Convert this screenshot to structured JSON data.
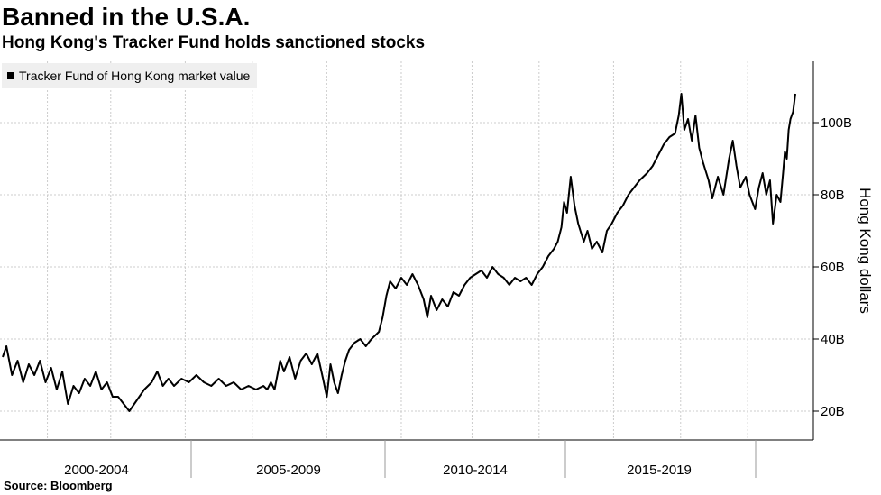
{
  "header": {
    "title": "Banned in the U.S.A.",
    "subtitle": "Hong Kong's Tracker Fund holds sanctioned stocks"
  },
  "footer": {
    "source": "Source: Bloomberg"
  },
  "colors": {
    "line": "#000000",
    "grid": "#cccccc",
    "legend_bg": "#efefef"
  },
  "chart_data": {
    "type": "line",
    "title": "Banned in the U.S.A.",
    "subtitle": "Hong Kong's Tracker Fund holds sanctioned stocks",
    "ylabel": "Hong Kong dollars",
    "xlabel": "",
    "legend": "Tracker Fund of Hong Kong market value",
    "legend_position": "top-left",
    "y_axis_side": "right",
    "ylim": [
      12,
      117
    ],
    "xlim": [
      1999.9,
      2021.0
    ],
    "grid": true,
    "y_ticks": [
      {
        "value": 20,
        "label": "20B"
      },
      {
        "value": 40,
        "label": "40B"
      },
      {
        "value": 60,
        "label": "60B"
      },
      {
        "value": 80,
        "label": "80B"
      },
      {
        "value": 100,
        "label": "100B"
      }
    ],
    "x_period_labels": [
      {
        "label": "2000-2004",
        "start": 1999.9,
        "end": 2005.0
      },
      {
        "label": "2005-2009",
        "start": 2005.0,
        "end": 2010.0
      },
      {
        "label": "2010-2014",
        "start": 2010.0,
        "end": 2014.75
      },
      {
        "label": "2015-2019",
        "start": 2014.75,
        "end": 2019.8
      }
    ],
    "series": [
      {
        "name": "Tracker Fund of Hong Kong market value",
        "unit": "HKD billions",
        "points": [
          [
            1999.9,
            35
          ],
          [
            2000.0,
            38
          ],
          [
            2000.15,
            30
          ],
          [
            2000.3,
            34
          ],
          [
            2000.45,
            28
          ],
          [
            2000.6,
            33
          ],
          [
            2000.75,
            30
          ],
          [
            2000.9,
            34
          ],
          [
            2001.05,
            28
          ],
          [
            2001.2,
            32
          ],
          [
            2001.35,
            26
          ],
          [
            2001.5,
            31
          ],
          [
            2001.65,
            22
          ],
          [
            2001.8,
            27
          ],
          [
            2001.95,
            25
          ],
          [
            2002.1,
            29
          ],
          [
            2002.25,
            27
          ],
          [
            2002.4,
            31
          ],
          [
            2002.55,
            26
          ],
          [
            2002.7,
            28
          ],
          [
            2002.85,
            24
          ],
          [
            2003.0,
            24
          ],
          [
            2003.15,
            22
          ],
          [
            2003.3,
            20
          ],
          [
            2003.5,
            23
          ],
          [
            2003.7,
            26
          ],
          [
            2003.9,
            28
          ],
          [
            2004.05,
            31
          ],
          [
            2004.2,
            27
          ],
          [
            2004.35,
            29
          ],
          [
            2004.5,
            27
          ],
          [
            2004.7,
            29
          ],
          [
            2004.9,
            28
          ],
          [
            2005.1,
            30
          ],
          [
            2005.3,
            28
          ],
          [
            2005.5,
            27
          ],
          [
            2005.7,
            29
          ],
          [
            2005.9,
            27
          ],
          [
            2006.1,
            28
          ],
          [
            2006.3,
            26
          ],
          [
            2006.5,
            27
          ],
          [
            2006.7,
            26
          ],
          [
            2006.9,
            27
          ],
          [
            2007.0,
            26
          ],
          [
            2007.1,
            28
          ],
          [
            2007.2,
            26
          ],
          [
            2007.35,
            34
          ],
          [
            2007.45,
            31
          ],
          [
            2007.6,
            35
          ],
          [
            2007.75,
            29
          ],
          [
            2007.9,
            34
          ],
          [
            2008.05,
            36
          ],
          [
            2008.2,
            33
          ],
          [
            2008.35,
            36
          ],
          [
            2008.5,
            29
          ],
          [
            2008.6,
            24
          ],
          [
            2008.7,
            33
          ],
          [
            2008.8,
            28
          ],
          [
            2008.9,
            25
          ],
          [
            2009.0,
            30
          ],
          [
            2009.1,
            34
          ],
          [
            2009.2,
            37
          ],
          [
            2009.35,
            39
          ],
          [
            2009.5,
            40
          ],
          [
            2009.65,
            38
          ],
          [
            2009.8,
            40
          ],
          [
            2009.9,
            41
          ],
          [
            2010.0,
            42
          ],
          [
            2010.1,
            46
          ],
          [
            2010.2,
            52
          ],
          [
            2010.3,
            56
          ],
          [
            2010.45,
            54
          ],
          [
            2010.6,
            57
          ],
          [
            2010.75,
            55
          ],
          [
            2010.9,
            58
          ],
          [
            2011.05,
            55
          ],
          [
            2011.2,
            51
          ],
          [
            2011.3,
            46
          ],
          [
            2011.4,
            52
          ],
          [
            2011.55,
            48
          ],
          [
            2011.7,
            51
          ],
          [
            2011.85,
            49
          ],
          [
            2012.0,
            53
          ],
          [
            2012.15,
            52
          ],
          [
            2012.3,
            55
          ],
          [
            2012.45,
            57
          ],
          [
            2012.6,
            58
          ],
          [
            2012.75,
            59
          ],
          [
            2012.9,
            57
          ],
          [
            2013.05,
            60
          ],
          [
            2013.2,
            58
          ],
          [
            2013.35,
            57
          ],
          [
            2013.5,
            55
          ],
          [
            2013.65,
            57
          ],
          [
            2013.8,
            56
          ],
          [
            2013.95,
            57
          ],
          [
            2014.1,
            55
          ],
          [
            2014.25,
            58
          ],
          [
            2014.4,
            60
          ],
          [
            2014.55,
            63
          ],
          [
            2014.7,
            65
          ],
          [
            2014.8,
            67
          ],
          [
            2014.9,
            71
          ],
          [
            2014.97,
            78
          ],
          [
            2015.05,
            75
          ],
          [
            2015.15,
            85
          ],
          [
            2015.25,
            77
          ],
          [
            2015.35,
            72
          ],
          [
            2015.5,
            67
          ],
          [
            2015.6,
            70
          ],
          [
            2015.72,
            65
          ],
          [
            2015.85,
            67
          ],
          [
            2016.0,
            64
          ],
          [
            2016.12,
            70
          ],
          [
            2016.25,
            72
          ],
          [
            2016.4,
            75
          ],
          [
            2016.55,
            77
          ],
          [
            2016.7,
            80
          ],
          [
            2016.85,
            82
          ],
          [
            2017.0,
            84
          ],
          [
            2017.2,
            86
          ],
          [
            2017.35,
            88
          ],
          [
            2017.5,
            91
          ],
          [
            2017.65,
            94
          ],
          [
            2017.8,
            96
          ],
          [
            2017.95,
            97
          ],
          [
            2018.05,
            102
          ],
          [
            2018.12,
            108
          ],
          [
            2018.2,
            98
          ],
          [
            2018.3,
            101
          ],
          [
            2018.4,
            95
          ],
          [
            2018.5,
            102
          ],
          [
            2018.6,
            93
          ],
          [
            2018.7,
            89
          ],
          [
            2018.85,
            84
          ],
          [
            2018.95,
            79
          ],
          [
            2019.1,
            85
          ],
          [
            2019.25,
            80
          ],
          [
            2019.4,
            90
          ],
          [
            2019.5,
            95
          ],
          [
            2019.6,
            88
          ],
          [
            2019.7,
            82
          ],
          [
            2019.85,
            85
          ],
          [
            2019.95,
            80
          ],
          [
            2020.1,
            76
          ],
          [
            2020.2,
            82
          ],
          [
            2020.3,
            86
          ],
          [
            2020.4,
            80
          ],
          [
            2020.5,
            84
          ],
          [
            2020.58,
            72
          ],
          [
            2020.68,
            80
          ],
          [
            2020.78,
            78
          ],
          [
            2020.85,
            86
          ],
          [
            2020.9,
            92
          ],
          [
            2020.95,
            90
          ],
          [
            2021.0,
            98
          ],
          [
            2021.05,
            101
          ],
          [
            2021.12,
            103
          ],
          [
            2021.18,
            108
          ]
        ]
      }
    ]
  }
}
